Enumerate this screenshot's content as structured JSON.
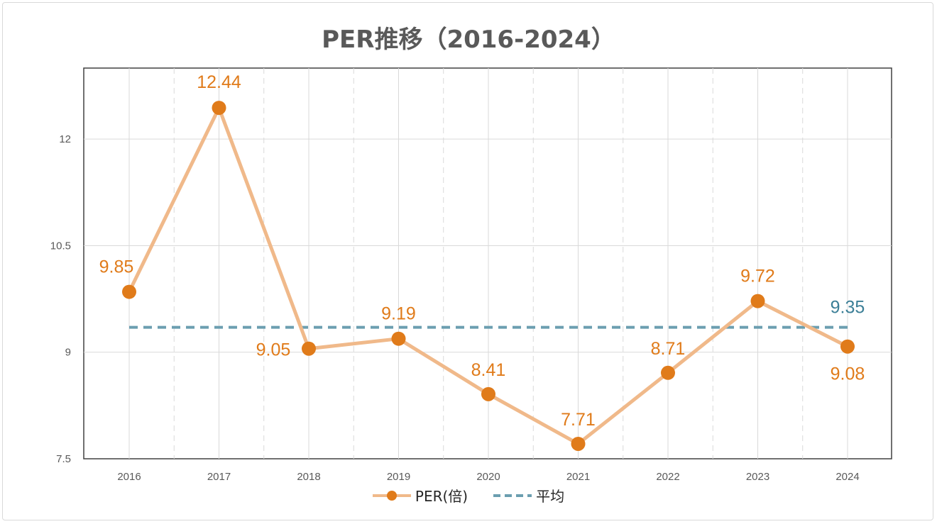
{
  "chart_data": {
    "type": "line",
    "title": "PER推移（2016-2024）",
    "categories": [
      "2016",
      "2017",
      "2018",
      "2019",
      "2020",
      "2021",
      "2022",
      "2023",
      "2024"
    ],
    "series": [
      {
        "name": "PER(倍)",
        "values": [
          9.85,
          12.44,
          9.05,
          9.19,
          8.41,
          7.71,
          8.71,
          9.72,
          9.08
        ],
        "labels": [
          "9.85",
          "12.44",
          "9.05",
          "9.19",
          "8.41",
          "7.71",
          "8.71",
          "9.72",
          "9.08"
        ],
        "color": "#E07B1A",
        "line_color": "#F0B98A"
      },
      {
        "name": "平均",
        "values": [
          9.35,
          9.35,
          9.35,
          9.35,
          9.35,
          9.35,
          9.35,
          9.35,
          9.35
        ],
        "end_label": "9.35",
        "color": "#6B9EB0",
        "label_color": "#3C7F97",
        "dashed": true
      }
    ],
    "ylim": [
      7.5,
      13.0
    ],
    "yticks": [
      "7.5",
      "9",
      "10.5",
      "12"
    ],
    "ytick_values": [
      7.5,
      9,
      10.5,
      12
    ],
    "grid": true,
    "legend": "bottom"
  }
}
